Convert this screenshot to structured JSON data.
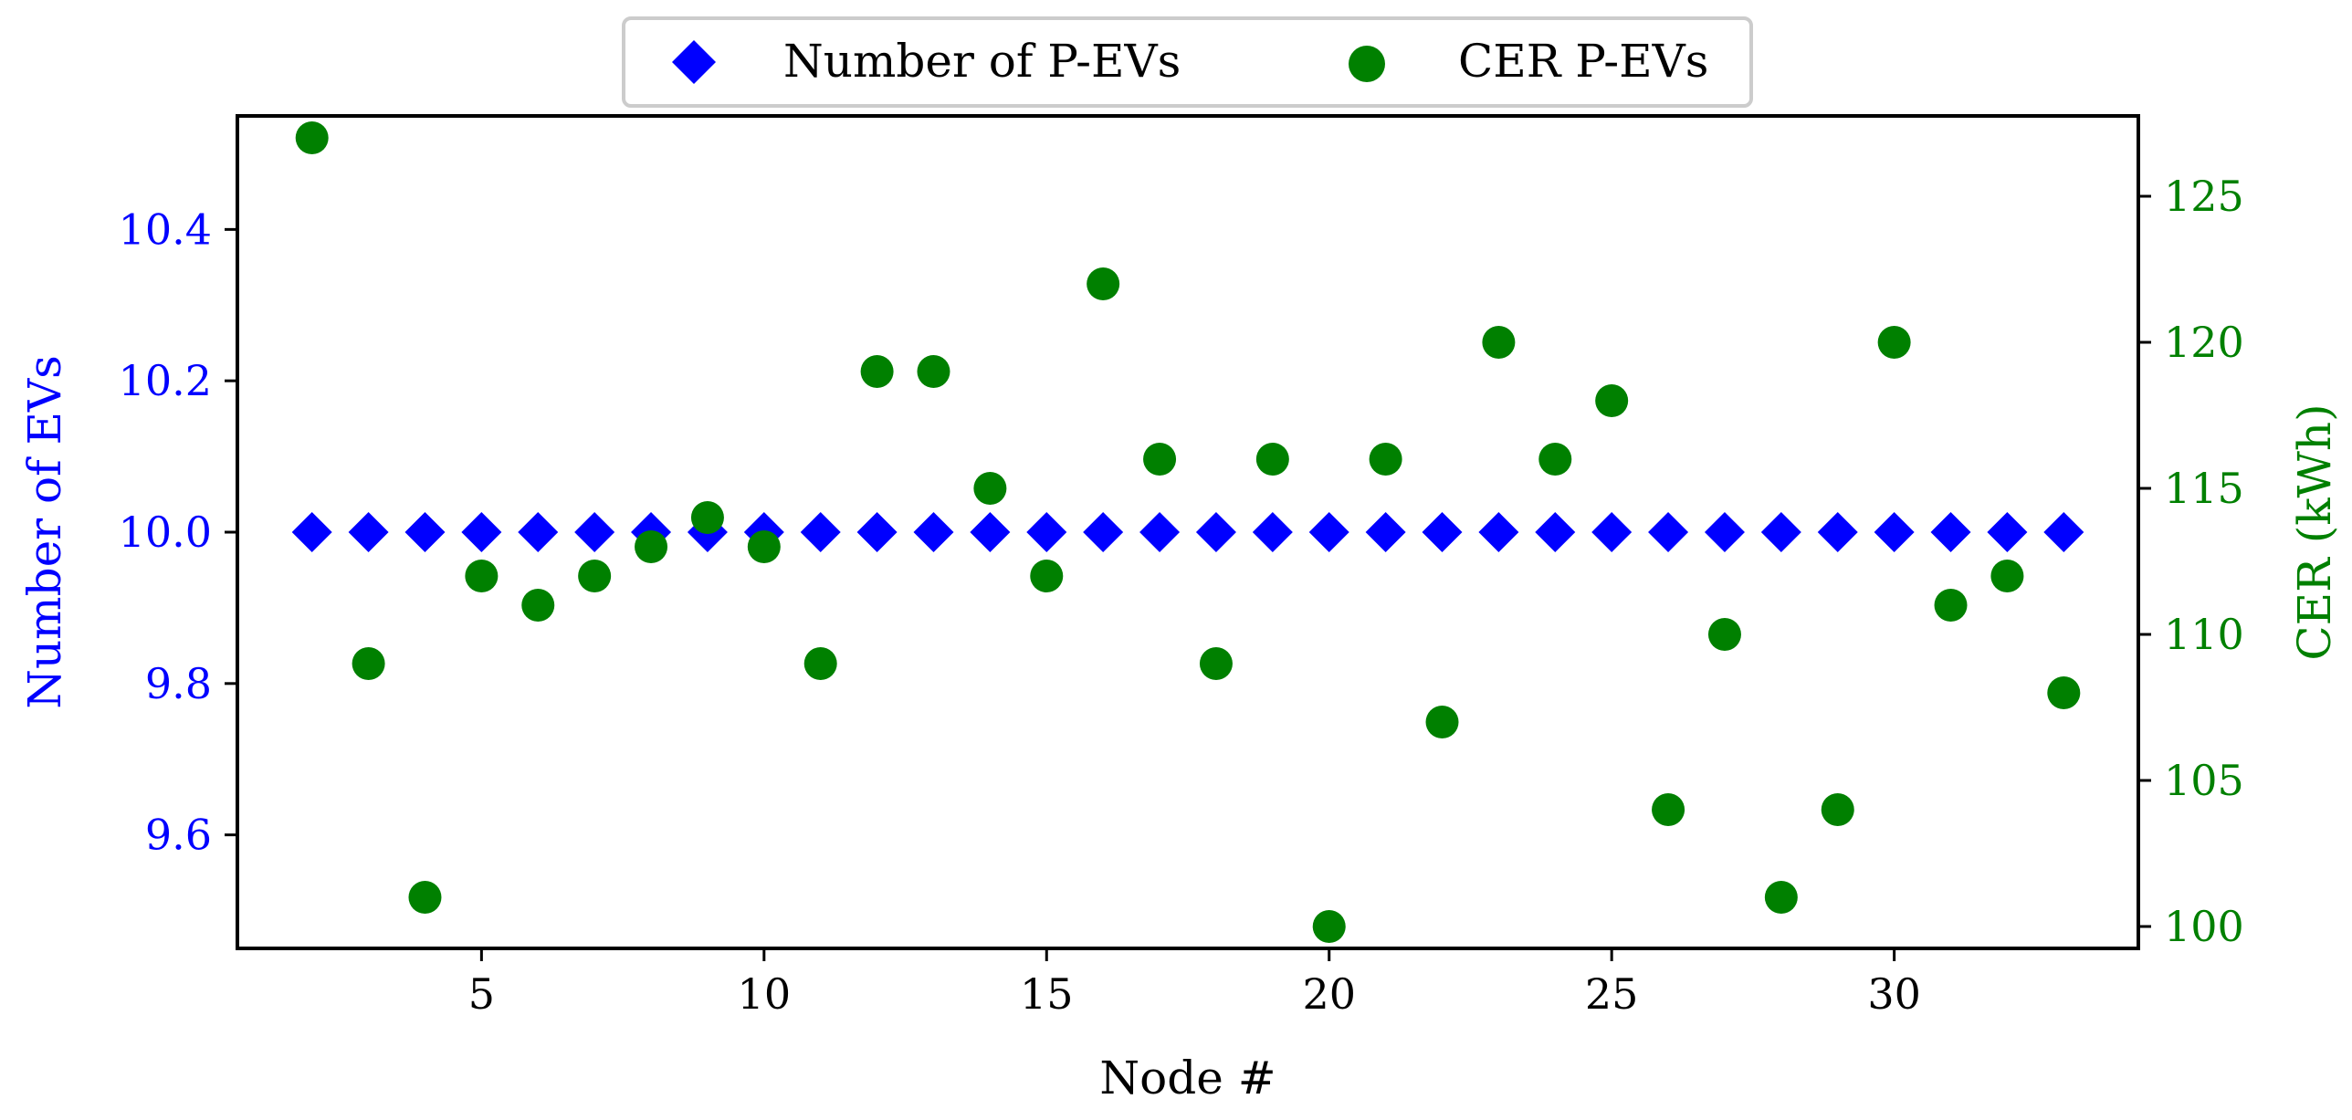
{
  "chart_data": {
    "type": "scatter",
    "xlabel": "Node #",
    "ylabel_left": "Number of EVs",
    "ylabel_right": "CER (kWh)",
    "xlim": [
      0.68,
      34.32
    ],
    "ylim_left": [
      9.45,
      10.55
    ],
    "ylim_right": [
      99.25,
      127.75
    ],
    "x_ticks": [
      5,
      10,
      15,
      20,
      25,
      30
    ],
    "y_left_ticks": [
      9.6,
      9.8,
      10.0,
      10.2,
      10.4
    ],
    "y_right_ticks": [
      100,
      105,
      110,
      115,
      120,
      125
    ],
    "x_tick_labels": [
      "5",
      "10",
      "15",
      "20",
      "25",
      "30"
    ],
    "y_left_tick_labels": [
      "9.6",
      "9.8",
      "10.0",
      "10.2",
      "10.4"
    ],
    "y_right_tick_labels": [
      "100",
      "105",
      "110",
      "115",
      "120",
      "125"
    ],
    "legend_position": "top-center, outside above plot",
    "grid": false,
    "x": [
      2,
      3,
      4,
      5,
      6,
      7,
      8,
      9,
      10,
      11,
      12,
      13,
      14,
      15,
      16,
      17,
      18,
      19,
      20,
      21,
      22,
      23,
      24,
      25,
      26,
      27,
      28,
      29,
      30,
      31,
      32,
      33
    ],
    "series": [
      {
        "name": "Number of P-EVs",
        "axis": "left",
        "marker": "diamond",
        "color": "#0000ff",
        "values": [
          10,
          10,
          10,
          10,
          10,
          10,
          10,
          10,
          10,
          10,
          10,
          10,
          10,
          10,
          10,
          10,
          10,
          10,
          10,
          10,
          10,
          10,
          10,
          10,
          10,
          10,
          10,
          10,
          10,
          10,
          10,
          10
        ]
      },
      {
        "name": "CER P-EVs",
        "axis": "right",
        "marker": "circle",
        "color": "#008000",
        "values": [
          127,
          109,
          101,
          112,
          111,
          112,
          113,
          114,
          113,
          109,
          119,
          119,
          115,
          112,
          122,
          116,
          109,
          116,
          100,
          116,
          107,
          120,
          116,
          118,
          104,
          110,
          101,
          104,
          120,
          111,
          112,
          108
        ]
      }
    ]
  },
  "colors": {
    "left_axis": "#0000ff",
    "right_axis": "#008000",
    "frame": "#000000"
  }
}
